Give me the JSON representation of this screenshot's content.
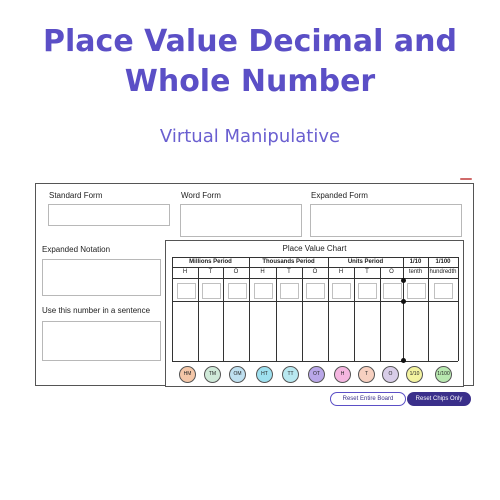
{
  "header": {
    "title_line1": "Place Value Decimal and",
    "title_line2": "Whole Number",
    "subtitle": "Virtual Manipulative"
  },
  "form": {
    "standard_form": "Standard Form",
    "word_form": "Word Form",
    "expanded_form": "Expanded Form",
    "expanded_notation": "Expanded Notation",
    "sentence": "Use this number in a sentence"
  },
  "chart": {
    "title": "Place Value Chart",
    "periods": [
      "Millions Period",
      "Thousands Period",
      "Units Period",
      "1/10",
      "1/100"
    ],
    "places": [
      "H",
      "T",
      "O",
      "H",
      "T",
      "O",
      "H",
      "T",
      "O",
      "tenth",
      "hundredth"
    ]
  },
  "chips": [
    {
      "label": "HM",
      "color": "#f4c7a8"
    },
    {
      "label": "TM",
      "color": "#cfe9d8"
    },
    {
      "label": "OM",
      "color": "#bfe0f0"
    },
    {
      "label": "HT",
      "color": "#9ee0ef"
    },
    {
      "label": "TT",
      "color": "#b8e8f0"
    },
    {
      "label": "OT",
      "color": "#b9a7e8"
    },
    {
      "label": "H",
      "color": "#f4b6e0"
    },
    {
      "label": "T",
      "color": "#f7d0c0"
    },
    {
      "label": "O",
      "color": "#d8cde8"
    },
    {
      "label": "1/10",
      "color": "#f3f3a0"
    },
    {
      "label": "1/100",
      "color": "#b8e8b0"
    }
  ],
  "buttons": {
    "reset_board": "Reset Entire Board",
    "reset_chips": "Reset Chips Only"
  },
  "colors": {
    "accent": "#5b4fc6",
    "button_dark": "#3a2f8a"
  }
}
